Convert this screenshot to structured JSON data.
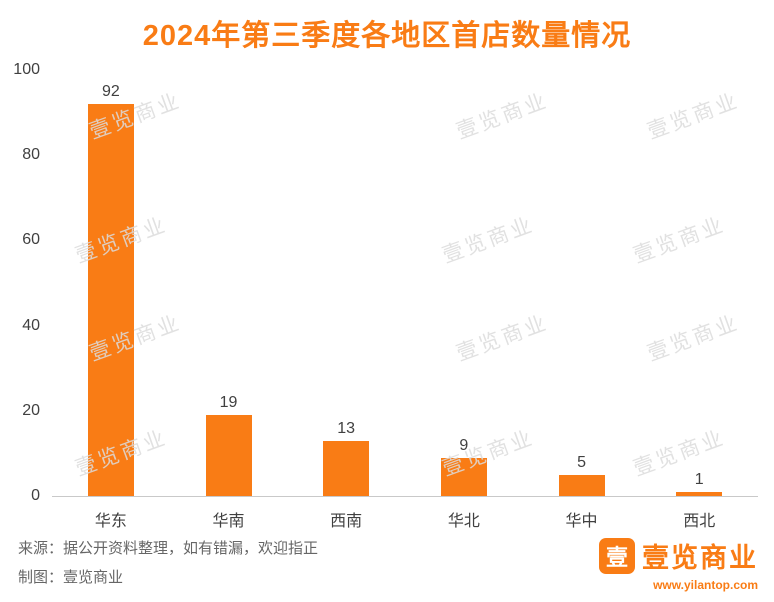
{
  "title": "2024年第三季度各地区首店数量情况",
  "colors": {
    "accent": "#F97C15",
    "bar": "#F97C15",
    "value_text": "#404040",
    "axis_line": "#C9C9C9",
    "footer_text": "#666666",
    "watermark": "#DCDCDC"
  },
  "chart_data": {
    "type": "bar",
    "categories": [
      "华东",
      "华南",
      "西南",
      "华北",
      "华中",
      "西北"
    ],
    "values": [
      92,
      19,
      13,
      9,
      5,
      1
    ],
    "title": "2024年第三季度各地区首店数量情况",
    "xlabel": "",
    "ylabel": "",
    "ylim": [
      0,
      100
    ],
    "yticks": [
      0,
      20,
      40,
      60,
      80,
      100
    ],
    "bar_color": "#F97C15",
    "grid": false,
    "legend": false,
    "data_labels": true
  },
  "watermark": {
    "text": "壹览商业"
  },
  "footer": {
    "source_line": "来源：据公开资料整理，如有错漏，欢迎指正",
    "credit_line": "制图：壹览商业",
    "logo_icon_char": "壹",
    "logo_text": "壹览商业",
    "website": "www.yilantop.com"
  }
}
